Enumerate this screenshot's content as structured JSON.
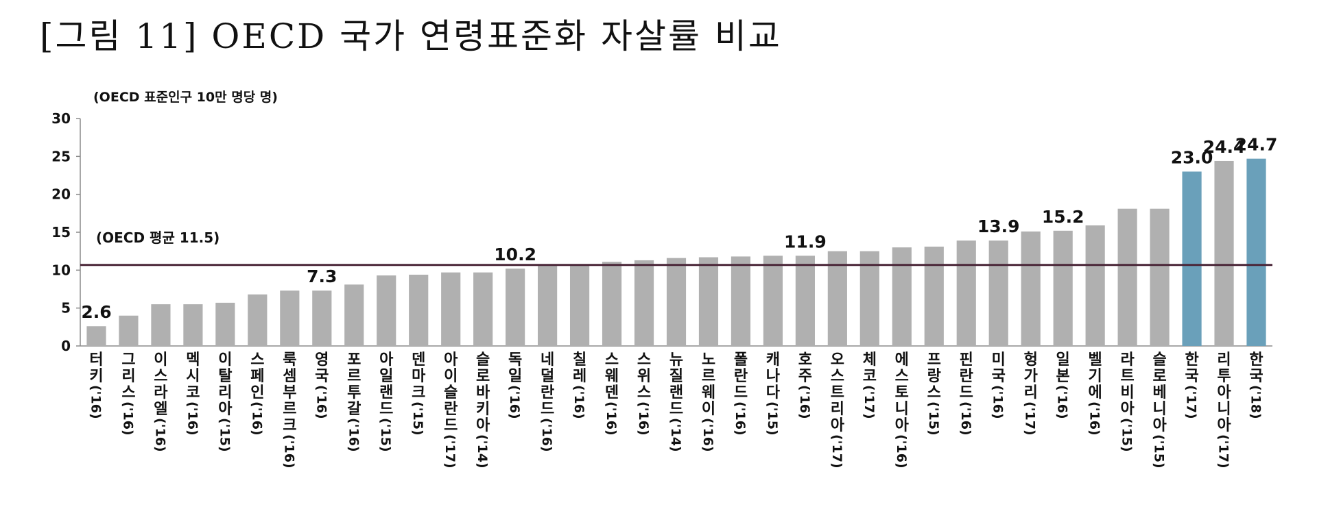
{
  "title": "[그림 11] OECD 국가 연령표준화 자살률 비교",
  "chart_data": {
    "type": "bar",
    "ylabel": "(OECD 표준인구 10만 명당 명)",
    "ylim": [
      0,
      30
    ],
    "yticks": [
      "0",
      "5",
      "10",
      "15",
      "20",
      "25",
      "30"
    ],
    "categories": [
      "터키('16)",
      "그리스('16)",
      "이스라엘('16)",
      "멕시코('16)",
      "이탈리아('15)",
      "스페인('16)",
      "룩셈부르크('16)",
      "영국('16)",
      "포르투갈('16)",
      "아일랜드('15)",
      "덴마크('15)",
      "아이슬란드('17)",
      "슬로바키아('14)",
      "독일('16)",
      "네덜란드('16)",
      "칠레('16)",
      "스웨덴('16)",
      "스위스('16)",
      "뉴질랜드('14)",
      "노르웨이('16)",
      "폴란드('16)",
      "캐나다('15)",
      "호주('16)",
      "오스트리아('17)",
      "체코('17)",
      "에스토니아('16)",
      "프랑스('15)",
      "핀란드('16)",
      "미국('16)",
      "헝가리('17)",
      "일본('16)",
      "벨기에('16)",
      "라트비아('15)",
      "슬로베니아('15)",
      "한국('17)",
      "리투아니아('17)",
      "한국('18)"
    ],
    "values": [
      2.6,
      4.0,
      5.5,
      5.5,
      5.7,
      6.8,
      7.3,
      7.3,
      8.1,
      9.3,
      9.4,
      9.7,
      9.7,
      10.2,
      10.6,
      10.7,
      11.1,
      11.3,
      11.6,
      11.7,
      11.8,
      11.9,
      11.9,
      12.5,
      12.5,
      13.0,
      13.1,
      13.9,
      13.9,
      15.1,
      15.2,
      15.9,
      18.1,
      18.1,
      23.0,
      24.4,
      24.7
    ],
    "highlighted": [
      34,
      36
    ],
    "data_labels": [
      {
        "index": 0,
        "text": "2.6"
      },
      {
        "index": 7,
        "text": "7.3"
      },
      {
        "index": 13,
        "text": "10.2"
      },
      {
        "index": 22,
        "text": "11.9"
      },
      {
        "index": 28,
        "text": "13.9"
      },
      {
        "index": 30,
        "text": "15.2"
      },
      {
        "index": 34,
        "text": "23.0"
      },
      {
        "index": 35,
        "text": "24.4"
      },
      {
        "index": 36,
        "text": "24.7"
      }
    ],
    "reference_line": {
      "value": 11.5,
      "label": "(OECD 평균 11.5)"
    },
    "colors": {
      "bar": "#b0b0b0",
      "highlight": "#6aa0ba",
      "line": "#4a2638",
      "axis": "#8a8a8a"
    }
  }
}
